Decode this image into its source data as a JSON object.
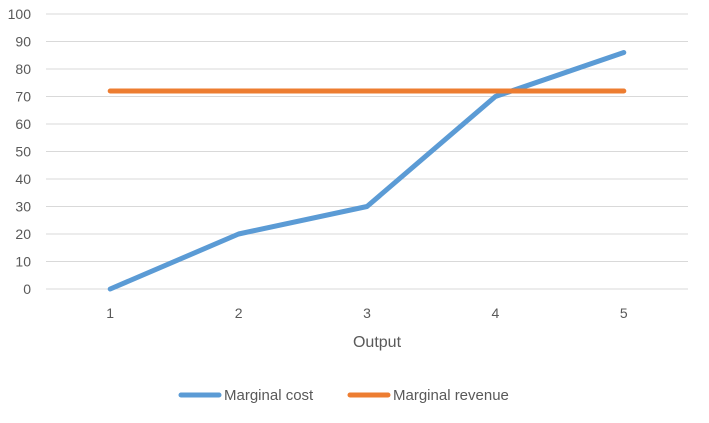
{
  "chart_data": {
    "type": "line",
    "x": [
      1,
      2,
      3,
      4,
      5
    ],
    "x_tick_labels": [
      "1",
      "2",
      "3",
      "4",
      "5"
    ],
    "xlabel": "Output",
    "ylabel": "",
    "ylim": [
      0,
      100
    ],
    "y_ticks": [
      0,
      10,
      20,
      30,
      40,
      50,
      60,
      70,
      80,
      90,
      100
    ],
    "y_tick_labels": [
      "0",
      "10",
      "20",
      "30",
      "40",
      "50",
      "60",
      "70",
      "80",
      "90",
      "100"
    ],
    "grid": true,
    "legend_position": "bottom",
    "series": [
      {
        "name": "Marginal cost",
        "color": "#5B9BD5",
        "values": [
          0,
          20,
          30,
          70,
          86
        ]
      },
      {
        "name": "Marginal revenue",
        "color": "#ED7D31",
        "values": [
          72,
          72,
          72,
          72,
          72
        ]
      }
    ]
  }
}
